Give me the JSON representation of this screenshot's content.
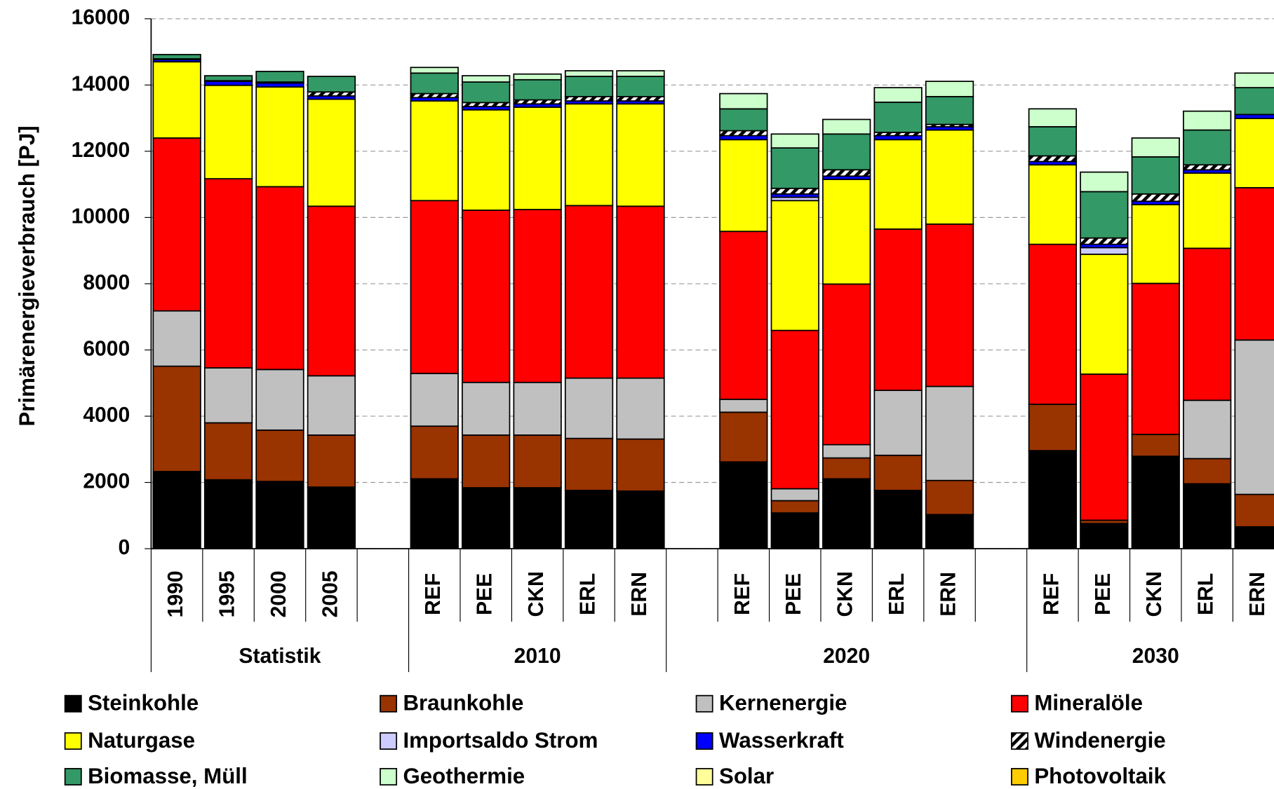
{
  "chart_data": {
    "type": "stacked-bar",
    "y_label": "Primärenergieverbrauch [PJ]",
    "ylim": [
      0,
      16000
    ],
    "yticks": [
      0,
      2000,
      4000,
      6000,
      8000,
      10000,
      12000,
      14000,
      16000
    ],
    "grid": true,
    "legend": "bottom",
    "groups": [
      {
        "name": "Statistik",
        "categories": [
          "1990",
          "1995",
          "2000",
          "2005",
          null
        ]
      },
      {
        "name": "2010",
        "categories": [
          "REF",
          "PEE",
          "CKN",
          "ERL",
          "ERN"
        ]
      },
      {
        "name": "2020",
        "categories": [
          null,
          "REF",
          "PEE",
          "CKN",
          "ERL",
          "ERN",
          null
        ]
      },
      {
        "name": "2030",
        "categories": [
          "REF",
          "PEE",
          "CKN",
          "ERL",
          "ERN"
        ]
      }
    ],
    "series": [
      {
        "name": "Steinkohle",
        "color": "#000000",
        "values": [
          2330,
          2080,
          2030,
          1860,
          null,
          2110,
          1840,
          1840,
          1760,
          1740,
          null,
          2620,
          1080,
          2110,
          1760,
          1030,
          null,
          2960,
          760,
          2790,
          1960,
          660
        ]
      },
      {
        "name": "Braunkohle",
        "color": "#993300",
        "values": [
          3180,
          1720,
          1550,
          1570,
          null,
          1590,
          1590,
          1590,
          1570,
          1570,
          null,
          1500,
          370,
          630,
          1060,
          1030,
          null,
          1400,
          100,
          660,
          760,
          980
        ]
      },
      {
        "name": "Kernenergie",
        "color": "#c0c0c0",
        "values": [
          1670,
          1660,
          1830,
          1790,
          null,
          1590,
          1590,
          1590,
          1820,
          1840,
          null,
          390,
          360,
          400,
          1960,
          2840,
          null,
          0,
          0,
          0,
          1760,
          4660
        ]
      },
      {
        "name": "Mineralöle",
        "color": "#ff0000",
        "values": [
          5220,
          5710,
          5520,
          5120,
          null,
          5220,
          5200,
          5220,
          5210,
          5190,
          null,
          5070,
          4780,
          4850,
          4870,
          4900,
          null,
          4830,
          4410,
          4560,
          4590,
          4600
        ]
      },
      {
        "name": "Naturgase",
        "color": "#ffff00",
        "values": [
          2300,
          2820,
          3010,
          3230,
          null,
          3010,
          3030,
          3090,
          3070,
          3090,
          null,
          2770,
          3920,
          3160,
          2700,
          2840,
          null,
          2400,
          3620,
          2380,
          2270,
          2090
        ]
      },
      {
        "name": "Importsaldo Strom",
        "color": "#ccccff",
        "values": [
          0,
          0,
          0,
          0,
          null,
          0,
          0,
          0,
          0,
          0,
          null,
          0,
          100,
          0,
          0,
          0,
          null,
          0,
          200,
          0,
          0,
          0
        ]
      },
      {
        "name": "Wasserkraft",
        "color": "#0000ff",
        "values": [
          70,
          120,
          120,
          100,
          null,
          100,
          100,
          100,
          90,
          90,
          null,
          120,
          100,
          100,
          120,
          100,
          null,
          100,
          100,
          100,
          100,
          120
        ]
      },
      {
        "name": "Windenergie",
        "color": "#000000",
        "pattern": "diagonal-stripes",
        "values": [
          20,
          20,
          30,
          120,
          null,
          120,
          120,
          120,
          130,
          130,
          null,
          150,
          170,
          190,
          100,
          70,
          null,
          170,
          190,
          220,
          150,
          0
        ]
      },
      {
        "name": "Biomasse, Müll",
        "color": "#339966",
        "values": [
          130,
          150,
          320,
          470,
          null,
          620,
          620,
          610,
          610,
          610,
          null,
          660,
          1220,
          1080,
          910,
          840,
          null,
          880,
          1400,
          1120,
          1050,
          810
        ]
      },
      {
        "name": "Geothermie",
        "color": "#ccffcc",
        "values": [
          0,
          0,
          0,
          0,
          null,
          170,
          190,
          170,
          170,
          170,
          null,
          460,
          420,
          440,
          440,
          460,
          null,
          540,
          590,
          570,
          570,
          440
        ]
      },
      {
        "name": "Solar",
        "color": "#ffff99",
        "values": [
          0,
          0,
          0,
          0,
          null,
          0,
          0,
          0,
          0,
          0,
          null,
          0,
          0,
          0,
          0,
          0,
          null,
          0,
          0,
          0,
          0,
          0
        ]
      },
      {
        "name": "Photovoltaik",
        "color": "#ffcc00",
        "values": [
          0,
          0,
          0,
          0,
          null,
          0,
          0,
          0,
          0,
          0,
          null,
          0,
          0,
          0,
          0,
          0,
          null,
          0,
          0,
          0,
          0,
          0
        ]
      }
    ]
  }
}
